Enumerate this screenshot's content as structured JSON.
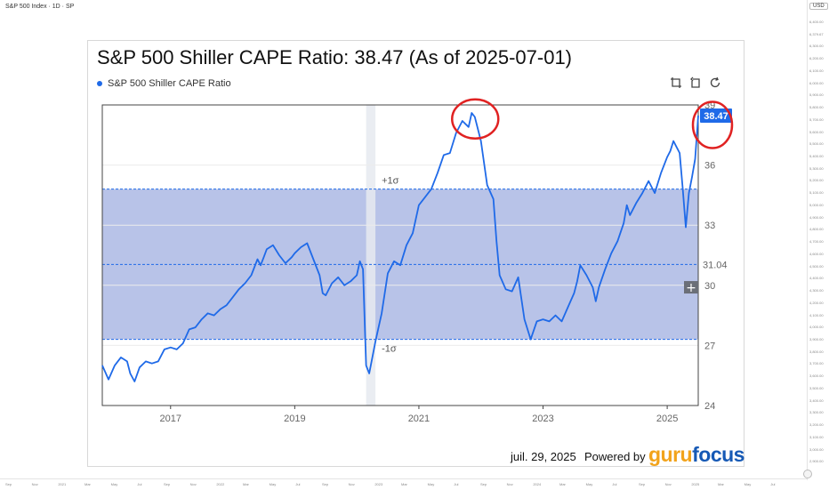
{
  "tv": {
    "header": "S&P 500 Index · 1D · SP",
    "unit": "USD",
    "right_ticks": [
      "6,400.00",
      "6,379.67",
      "6,300.00",
      "6,200.00",
      "6,100.00",
      "6,000.00",
      "5,900.00",
      "5,800.00",
      "5,700.00",
      "5,600.00",
      "5,500.00",
      "5,400.00",
      "5,300.00",
      "5,200.00",
      "5,100.00",
      "5,000.00",
      "4,900.00",
      "4,800.00",
      "4,700.00",
      "4,600.00",
      "4,500.00",
      "4,400.00",
      "4,300.00",
      "4,200.00",
      "4,100.00",
      "4,000.00",
      "3,900.00",
      "3,800.00",
      "3,700.00",
      "3,600.00",
      "3,500.00",
      "3,400.00",
      "3,300.00",
      "3,200.00",
      "3,100.00",
      "3,000.00",
      "2,900.00"
    ],
    "bottom_ticks": [
      "Sep",
      "Nov",
      "2021",
      "Mar",
      "May",
      "Jul",
      "Sep",
      "Nov",
      "2022",
      "Mar",
      "May",
      "Jul",
      "Sep",
      "Nov",
      "2023",
      "Mar",
      "May",
      "Jul",
      "Sep",
      "Nov",
      "2024",
      "Mar",
      "May",
      "Jul",
      "Sep",
      "Nov",
      "2025",
      "Mar",
      "May",
      "Jul"
    ]
  },
  "card": {
    "title": "S&P 500 Shiller CAPE Ratio: 38.47 (As of 2025-07-01)",
    "legend_label": "S&P 500 Shiller CAPE Ratio",
    "footer_date": "juil. 29, 2025",
    "powered_by": "Powered by",
    "brand_part1": "guru",
    "brand_part2": "focus"
  },
  "chart_data": {
    "type": "line",
    "series": [
      {
        "name": "S&P 500 Shiller CAPE Ratio",
        "color": "#1f6ae8",
        "points": [
          [
            2015.9,
            26.0
          ],
          [
            2016.0,
            25.3
          ],
          [
            2016.1,
            26.0
          ],
          [
            2016.2,
            26.4
          ],
          [
            2016.3,
            26.2
          ],
          [
            2016.35,
            25.6
          ],
          [
            2016.42,
            25.2
          ],
          [
            2016.5,
            25.9
          ],
          [
            2016.6,
            26.2
          ],
          [
            2016.7,
            26.1
          ],
          [
            2016.8,
            26.2
          ],
          [
            2016.9,
            26.8
          ],
          [
            2017.0,
            26.9
          ],
          [
            2017.1,
            26.8
          ],
          [
            2017.2,
            27.1
          ],
          [
            2017.3,
            27.8
          ],
          [
            2017.4,
            27.9
          ],
          [
            2017.5,
            28.3
          ],
          [
            2017.6,
            28.6
          ],
          [
            2017.7,
            28.5
          ],
          [
            2017.8,
            28.8
          ],
          [
            2017.9,
            29.0
          ],
          [
            2018.0,
            29.4
          ],
          [
            2018.1,
            29.8
          ],
          [
            2018.2,
            30.1
          ],
          [
            2018.3,
            30.5
          ],
          [
            2018.35,
            30.9
          ],
          [
            2018.4,
            31.3
          ],
          [
            2018.45,
            31.0
          ],
          [
            2018.5,
            31.4
          ],
          [
            2018.55,
            31.8
          ],
          [
            2018.65,
            32.0
          ],
          [
            2018.75,
            31.5
          ],
          [
            2018.85,
            31.1
          ],
          [
            2018.95,
            31.4
          ],
          [
            2019.0,
            31.6
          ],
          [
            2019.1,
            31.9
          ],
          [
            2019.2,
            32.1
          ],
          [
            2019.3,
            31.3
          ],
          [
            2019.4,
            30.5
          ],
          [
            2019.45,
            29.6
          ],
          [
            2019.5,
            29.5
          ],
          [
            2019.6,
            30.1
          ],
          [
            2019.7,
            30.4
          ],
          [
            2019.8,
            30.0
          ],
          [
            2019.9,
            30.2
          ],
          [
            2020.0,
            30.5
          ],
          [
            2020.05,
            31.2
          ],
          [
            2020.1,
            30.8
          ],
          [
            2020.15,
            26.0
          ],
          [
            2020.2,
            25.6
          ],
          [
            2020.3,
            27.2
          ],
          [
            2020.4,
            28.6
          ],
          [
            2020.5,
            30.6
          ],
          [
            2020.6,
            31.2
          ],
          [
            2020.7,
            31.0
          ],
          [
            2020.8,
            32.0
          ],
          [
            2020.9,
            32.6
          ],
          [
            2021.0,
            34.0
          ],
          [
            2021.1,
            34.4
          ],
          [
            2021.2,
            34.8
          ],
          [
            2021.3,
            35.6
          ],
          [
            2021.4,
            36.5
          ],
          [
            2021.5,
            36.6
          ],
          [
            2021.6,
            37.6
          ],
          [
            2021.7,
            38.2
          ],
          [
            2021.8,
            37.9
          ],
          [
            2021.85,
            38.6
          ],
          [
            2021.9,
            38.4
          ],
          [
            2022.0,
            37.2
          ],
          [
            2022.1,
            35.0
          ],
          [
            2022.2,
            34.3
          ],
          [
            2022.25,
            32.2
          ],
          [
            2022.3,
            30.5
          ],
          [
            2022.4,
            29.8
          ],
          [
            2022.5,
            29.7
          ],
          [
            2022.6,
            30.4
          ],
          [
            2022.7,
            28.3
          ],
          [
            2022.8,
            27.3
          ],
          [
            2022.9,
            28.2
          ],
          [
            2023.0,
            28.3
          ],
          [
            2023.1,
            28.2
          ],
          [
            2023.2,
            28.5
          ],
          [
            2023.3,
            28.2
          ],
          [
            2023.4,
            28.9
          ],
          [
            2023.5,
            29.6
          ],
          [
            2023.55,
            30.2
          ],
          [
            2023.6,
            31.0
          ],
          [
            2023.7,
            30.5
          ],
          [
            2023.8,
            29.9
          ],
          [
            2023.85,
            29.2
          ],
          [
            2023.9,
            29.9
          ],
          [
            2024.0,
            30.8
          ],
          [
            2024.1,
            31.6
          ],
          [
            2024.2,
            32.2
          ],
          [
            2024.3,
            33.1
          ],
          [
            2024.35,
            34.0
          ],
          [
            2024.4,
            33.5
          ],
          [
            2024.5,
            34.1
          ],
          [
            2024.6,
            34.6
          ],
          [
            2024.7,
            35.2
          ],
          [
            2024.8,
            34.6
          ],
          [
            2024.9,
            35.6
          ],
          [
            2025.0,
            36.4
          ],
          [
            2025.05,
            36.7
          ],
          [
            2025.1,
            37.2
          ],
          [
            2025.15,
            36.9
          ],
          [
            2025.2,
            36.6
          ],
          [
            2025.25,
            34.8
          ],
          [
            2025.3,
            32.9
          ],
          [
            2025.35,
            34.6
          ],
          [
            2025.4,
            35.4
          ],
          [
            2025.45,
            36.3
          ],
          [
            2025.5,
            38.47
          ]
        ]
      }
    ],
    "xlim": [
      2015.9,
      2025.5
    ],
    "ylim": [
      24,
      39
    ],
    "x_ticks": [
      2017,
      2019,
      2021,
      2023,
      2025
    ],
    "x_tick_labels": [
      "2017",
      "2019",
      "2021",
      "2023",
      "2025"
    ],
    "y_ticks": [
      24,
      27,
      30,
      33,
      36,
      39
    ],
    "y_tick_labels": [
      "24",
      "27",
      "30",
      "33",
      "36",
      "39"
    ],
    "mean": 31.04,
    "mean_label": "31.04",
    "plus_sigma": 34.8,
    "plus_sigma_label": "+1σ",
    "minus_sigma": 27.3,
    "minus_sigma_label": "-1σ",
    "last_value_label": "38.47",
    "highlight_period": [
      2020.15,
      2020.3
    ],
    "band_color": "#b8c3e8",
    "line_color": "#1f6ae8",
    "annotation_color": "#e02222"
  }
}
